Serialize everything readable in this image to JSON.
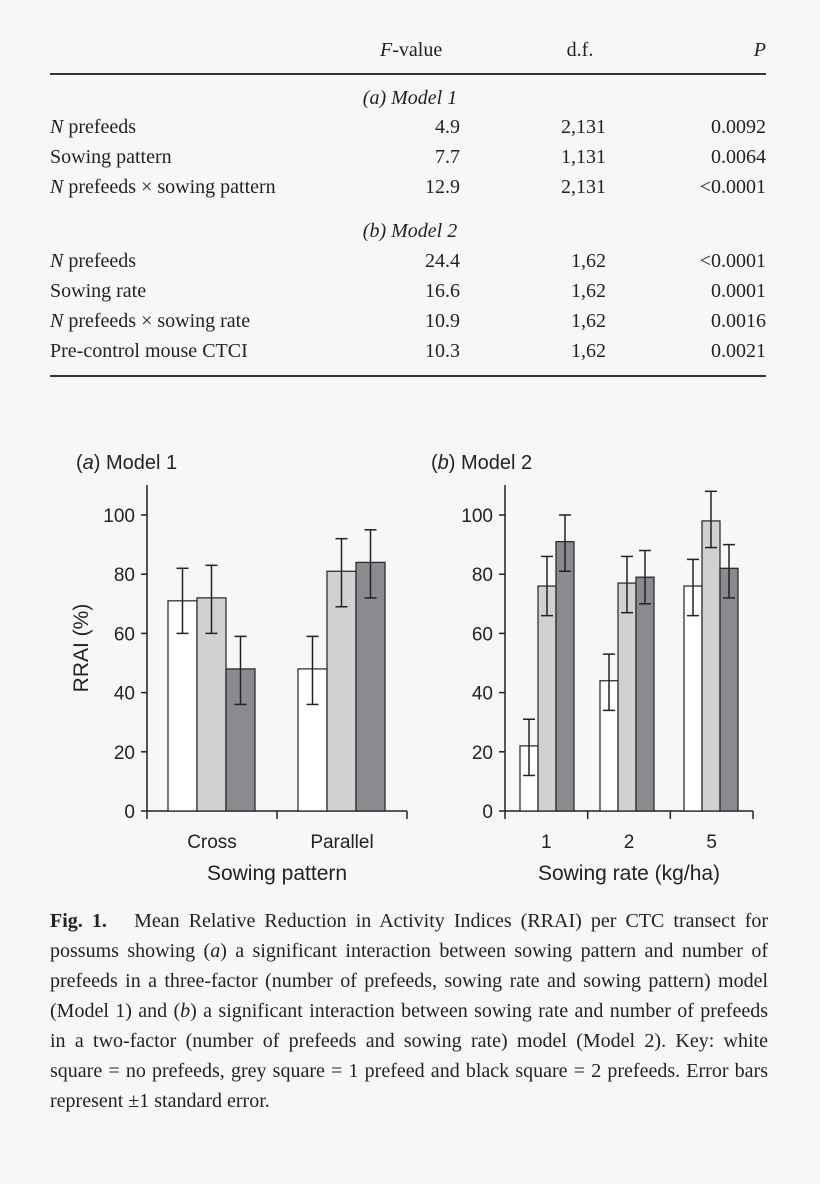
{
  "table": {
    "headers": {
      "label": "",
      "f_value_italic": "F",
      "f_value": "-value",
      "df": "d.f.",
      "p": "P"
    },
    "sections": [
      {
        "title": "(a) Model 1",
        "rows": [
          {
            "label_italic": "N",
            "label": " prefeeds",
            "f": "4.9",
            "df": "2,131",
            "p": "0.0092"
          },
          {
            "label_italic": "",
            "label": "Sowing pattern",
            "f": "7.7",
            "df": "1,131",
            "p": "0.0064"
          },
          {
            "label_italic": "N",
            "label": " prefeeds × sowing pattern",
            "f": "12.9",
            "df": "2,131",
            "p": "<0.0001"
          }
        ]
      },
      {
        "title": "(b) Model 2",
        "rows": [
          {
            "label_italic": "N",
            "label": " prefeeds",
            "f": "24.4",
            "df": "1,62",
            "p": "<0.0001"
          },
          {
            "label_italic": "",
            "label": "Sowing rate",
            "f": "16.6",
            "df": "1,62",
            "p": "0.0001"
          },
          {
            "label_italic": "N",
            "label": " prefeeds × sowing rate",
            "f": "10.9",
            "df": "1,62",
            "p": "0.0016"
          },
          {
            "label_italic": "",
            "label": "Pre-control mouse CTCI",
            "f": "10.3",
            "df": "1,62",
            "p": "0.0021"
          }
        ]
      }
    ]
  },
  "chart_data": [
    {
      "type": "bar",
      "panel_letter": "a",
      "title": "Model 1",
      "xlabel": "Sowing pattern",
      "ylabel": "RRAI (%)",
      "ylim": [
        0,
        110
      ],
      "yticks": [
        0,
        20,
        40,
        60,
        80,
        100
      ],
      "categories": [
        "Cross",
        "Parallel"
      ],
      "series": [
        {
          "color": "#ffffff",
          "values": [
            71,
            48
          ],
          "err_low": [
            60,
            36
          ],
          "err_high": [
            82,
            59
          ]
        },
        {
          "color": "#d0d1d3",
          "values": [
            72,
            81
          ],
          "err_low": [
            60,
            69
          ],
          "err_high": [
            83,
            92
          ]
        },
        {
          "color": "#8a8b8e",
          "values": [
            48,
            84
          ],
          "err_low": [
            36,
            72
          ],
          "err_high": [
            59,
            95
          ]
        }
      ]
    },
    {
      "type": "bar",
      "panel_letter": "b",
      "title": "Model 2",
      "xlabel": "Sowing rate (kg/ha)",
      "ylabel": "",
      "ylim": [
        0,
        110
      ],
      "yticks": [
        0,
        20,
        40,
        60,
        80,
        100
      ],
      "categories": [
        "1",
        "2",
        "5"
      ],
      "series": [
        {
          "color": "#ffffff",
          "values": [
            22,
            44,
            76
          ],
          "err_low": [
            12,
            34,
            66
          ],
          "err_high": [
            31,
            53,
            85
          ]
        },
        {
          "color": "#d0d1d3",
          "values": [
            76,
            77,
            98
          ],
          "err_low": [
            66,
            67,
            89
          ],
          "err_high": [
            86,
            86,
            108
          ]
        },
        {
          "color": "#8a8b8e",
          "values": [
            91,
            79,
            82
          ],
          "err_low": [
            81,
            70,
            72
          ],
          "err_high": [
            100,
            88,
            90
          ]
        }
      ]
    }
  ],
  "caption": {
    "label": "Fig. 1.",
    "parts": [
      "Mean Relative Reduction in Activity Indices (RRAI) per CTC transect for possums showing (",
      "a",
      ") a significant interaction between sowing pattern and number of prefeeds in a three-factor (number of prefeeds, sowing rate and sowing pattern) model (Model 1) and (",
      "b",
      ") a significant interaction between sowing rate and number of prefeeds in a two-factor (number of prefeeds and sowing rate) model (Model 2). Key: white square = no prefeeds, grey square = 1 prefeed and black square = 2 prefeeds. Error bars represent ±1 standard error."
    ]
  }
}
